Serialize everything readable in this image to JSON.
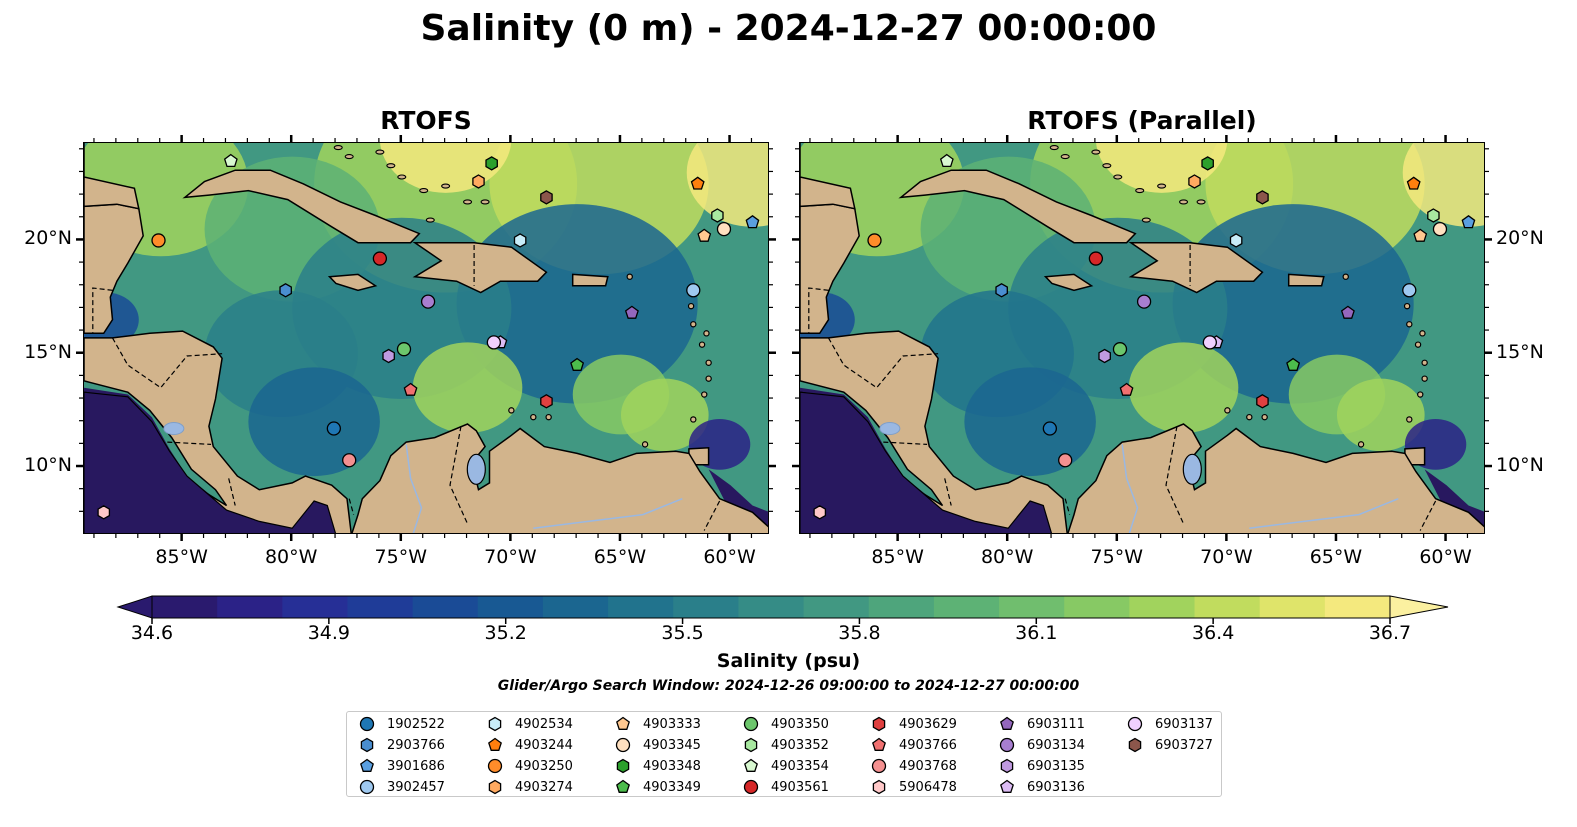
{
  "title": "Salinity (0 m) - 2024-12-27 00:00:00",
  "panels": [
    {
      "title": "RTOFS"
    },
    {
      "title": "RTOFS (Parallel)"
    }
  ],
  "lon_ticks": [
    "85°W",
    "80°W",
    "75°W",
    "70°W",
    "65°W",
    "60°W"
  ],
  "lat_ticks": [
    "20°N",
    "15°N",
    "10°N"
  ],
  "colorbar": {
    "label": "Salinity (psu)",
    "ticks": [
      "34.6",
      "34.9",
      "35.2",
      "35.5",
      "35.8",
      "36.1",
      "36.4",
      "36.7"
    ],
    "min": 34.6,
    "max": 36.7,
    "colors": [
      "#2a1a6e",
      "#2b2287",
      "#262f96",
      "#1f3c98",
      "#1a4b96",
      "#185993",
      "#1b6690",
      "#21738d",
      "#2a7f8a",
      "#358c86",
      "#419882",
      "#4ea57c",
      "#5db275",
      "#70be6e",
      "#87c964",
      "#a1d35d",
      "#c1dc5e",
      "#dfe46a",
      "#f4e97e"
    ]
  },
  "search_window": "Glider/Argo Search Window: 2024-12-26 09:00:00 to 2024-12-27 00:00:00",
  "colors": {
    "land": "#d2b48c",
    "lake": "#9ab8e2",
    "deep": "#28185f"
  },
  "legend": [
    {
      "id": "1902522",
      "marker": "circle",
      "color": "#1f77b4"
    },
    {
      "id": "2903766",
      "marker": "hexagon",
      "color": "#4a8ed0"
    },
    {
      "id": "3901686",
      "marker": "pentagon",
      "color": "#5a9fe0"
    },
    {
      "id": "3902457",
      "marker": "circle",
      "color": "#9fc9f0"
    },
    {
      "id": "4902534",
      "marker": "hexagon",
      "color": "#c8ecf8"
    },
    {
      "id": "4903244",
      "marker": "pentagon",
      "color": "#ff7f0e"
    },
    {
      "id": "4903250",
      "marker": "circle",
      "color": "#ff8c2a"
    },
    {
      "id": "4903274",
      "marker": "hexagon",
      "color": "#ffaa60"
    },
    {
      "id": "4903333",
      "marker": "pentagon",
      "color": "#ffc890"
    },
    {
      "id": "4903345",
      "marker": "circle",
      "color": "#ffe0c0"
    },
    {
      "id": "4903348",
      "marker": "hexagon",
      "color": "#2ca02c"
    },
    {
      "id": "4903349",
      "marker": "pentagon",
      "color": "#4cbc4c"
    },
    {
      "id": "4903350",
      "marker": "circle",
      "color": "#6cc66c"
    },
    {
      "id": "4903352",
      "marker": "hexagon",
      "color": "#a8e8a0"
    },
    {
      "id": "4903354",
      "marker": "pentagon",
      "color": "#d8f8d0"
    },
    {
      "id": "4903561",
      "marker": "circle",
      "color": "#d62728"
    },
    {
      "id": "4903629",
      "marker": "hexagon",
      "color": "#e04040"
    },
    {
      "id": "4903766",
      "marker": "pentagon",
      "color": "#f07070"
    },
    {
      "id": "4903768",
      "marker": "circle",
      "color": "#f49090"
    },
    {
      "id": "5906478",
      "marker": "hexagon",
      "color": "#ffc8c8"
    },
    {
      "id": "6903111",
      "marker": "pentagon",
      "color": "#9467bd"
    },
    {
      "id": "6903134",
      "marker": "circle",
      "color": "#a77ed0"
    },
    {
      "id": "6903135",
      "marker": "hexagon",
      "color": "#c09ae0"
    },
    {
      "id": "6903136",
      "marker": "pentagon",
      "color": "#dcbcf4"
    },
    {
      "id": "6903137",
      "marker": "circle",
      "color": "#f0d0ff"
    },
    {
      "id": "6903727",
      "marker": "hexagon",
      "color": "#8c564b"
    }
  ],
  "floats": [
    {
      "id": "4903354",
      "lon": -82.8,
      "lat": 23.5
    },
    {
      "id": "4903274",
      "lon": -71.5,
      "lat": 22.6
    },
    {
      "id": "4903348",
      "lon": -70.9,
      "lat": 23.4
    },
    {
      "id": "6903727",
      "lon": -68.4,
      "lat": 21.9
    },
    {
      "id": "4903244",
      "lon": -61.5,
      "lat": 22.5
    },
    {
      "id": "4903352",
      "lon": -60.6,
      "lat": 21.1
    },
    {
      "id": "3901686",
      "lon": -59.0,
      "lat": 20.8
    },
    {
      "id": "4903345",
      "lon": -60.3,
      "lat": 20.5
    },
    {
      "id": "4903333",
      "lon": -61.2,
      "lat": 20.2
    },
    {
      "id": "4903250",
      "lon": -86.1,
      "lat": 20.0
    },
    {
      "id": "4902534",
      "lon": -69.6,
      "lat": 20.0
    },
    {
      "id": "4903561",
      "lon": -76.0,
      "lat": 19.2
    },
    {
      "id": "2903766",
      "lon": -80.3,
      "lat": 17.8
    },
    {
      "id": "3902457",
      "lon": -61.7,
      "lat": 17.8
    },
    {
      "id": "6903134",
      "lon": -73.8,
      "lat": 17.3
    },
    {
      "id": "6903111",
      "lon": -64.5,
      "lat": 16.8
    },
    {
      "id": "6903136",
      "lon": -70.5,
      "lat": 15.5
    },
    {
      "id": "6903137",
      "lon": -70.8,
      "lat": 15.5
    },
    {
      "id": "4903350",
      "lon": -74.9,
      "lat": 15.2
    },
    {
      "id": "6903135",
      "lon": -75.6,
      "lat": 14.9
    },
    {
      "id": "4903349",
      "lon": -67.0,
      "lat": 14.5
    },
    {
      "id": "4903766",
      "lon": -74.6,
      "lat": 13.4
    },
    {
      "id": "4903629",
      "lon": -68.4,
      "lat": 12.9
    },
    {
      "id": "1902522",
      "lon": -78.1,
      "lat": 11.7
    },
    {
      "id": "4903768",
      "lon": -77.4,
      "lat": 10.3
    },
    {
      "id": "5906478",
      "lon": -88.6,
      "lat": 8.0
    }
  ]
}
